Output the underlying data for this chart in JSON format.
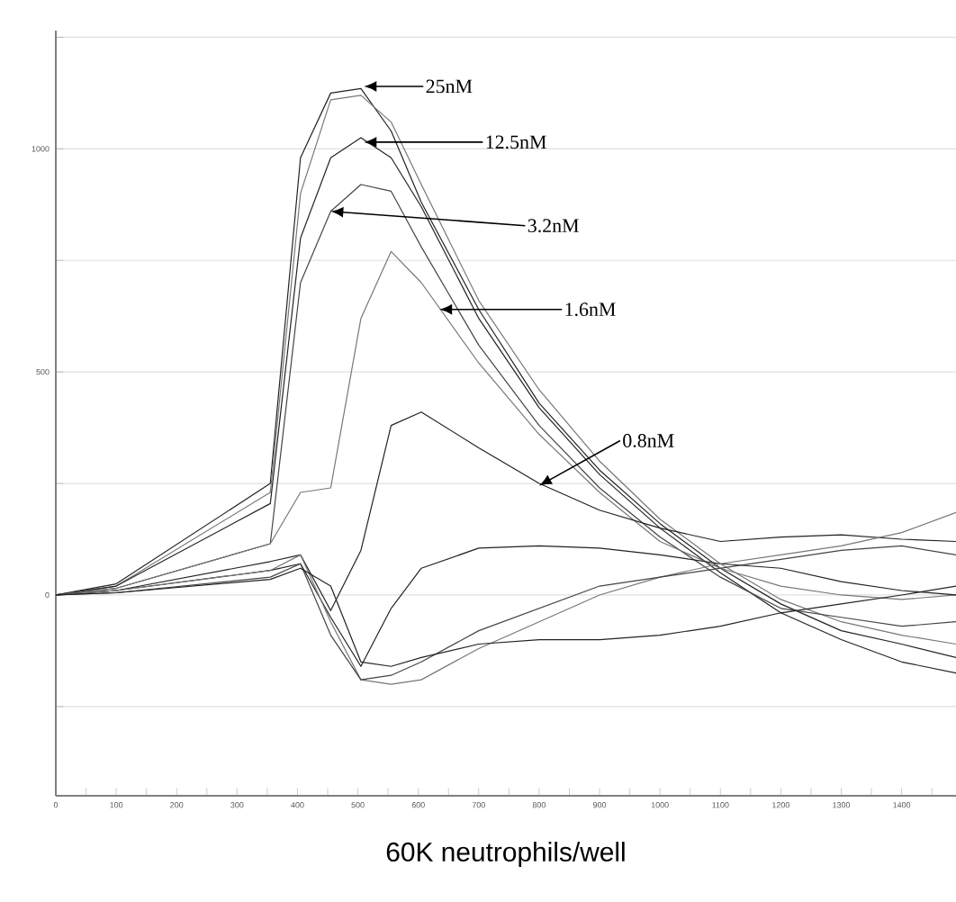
{
  "chart_data": {
    "type": "line",
    "xlabel": "60K neutrophils/well",
    "grid": "y",
    "xlim": [
      0,
      1490
    ],
    "ylim": [
      -450,
      1265
    ],
    "xticks": [
      0,
      {
        "value": 50,
        "label": null
      },
      100,
      {
        "value": 150,
        "label": null
      },
      200,
      {
        "value": 250,
        "label": null
      },
      300,
      {
        "value": 350,
        "label": null
      },
      400,
      {
        "value": 450,
        "label": null
      },
      500,
      {
        "value": 550,
        "label": null
      },
      600,
      {
        "value": 650,
        "label": null
      },
      700,
      {
        "value": 750,
        "label": null
      },
      800,
      {
        "value": 850,
        "label": null
      },
      900,
      {
        "value": 950,
        "label": null
      },
      1000,
      {
        "value": 1050,
        "label": null
      },
      1100,
      {
        "value": 1150,
        "label": null
      },
      1200,
      {
        "value": 1250,
        "label": null
      },
      1300,
      {
        "value": 1350,
        "label": null
      },
      1400,
      {
        "value": 1450,
        "label": null
      }
    ],
    "yticks": [
      {
        "value": -250,
        "label": null
      },
      0,
      {
        "value": 250,
        "label": null
      },
      500,
      {
        "value": 750,
        "label": null
      },
      1000,
      {
        "value": 1250,
        "label": null
      }
    ],
    "x": [
      0,
      100,
      355,
      405,
      455,
      505,
      555,
      605,
      700,
      800,
      900,
      1000,
      1100,
      1200,
      1300,
      1400,
      1490
    ],
    "series": [
      {
        "color": "#222222",
        "values": [
          0,
          25,
          250,
          980,
          1125,
          1135,
          1040,
          880,
          640,
          430,
          280,
          160,
          60,
          -20,
          -80,
          -110,
          -140
        ]
      },
      {
        "color": "#777777",
        "values": [
          0,
          20,
          230,
          900,
          1110,
          1120,
          1060,
          920,
          660,
          460,
          300,
          170,
          70,
          -10,
          -60,
          -90,
          -110
        ]
      },
      {
        "color": "#222222",
        "values": [
          0,
          20,
          205,
          800,
          980,
          1025,
          980,
          870,
          620,
          420,
          270,
          150,
          50,
          -40,
          -100,
          -150,
          -175
        ]
      },
      {
        "color": "#444444",
        "values": [
          0,
          15,
          115,
          700,
          860,
          920,
          905,
          780,
          560,
          380,
          240,
          130,
          40,
          -30,
          -50,
          -70,
          -60
        ]
      },
      {
        "color": "#777777",
        "values": [
          0,
          15,
          115,
          230,
          240,
          620,
          770,
          700,
          520,
          360,
          230,
          120,
          60,
          20,
          0,
          -10,
          0
        ]
      },
      {
        "color": "#222222",
        "values": [
          0,
          10,
          75,
          90,
          -35,
          100,
          380,
          410,
          330,
          250,
          190,
          150,
          120,
          130,
          135,
          125,
          120
        ]
      },
      {
        "color": "#222222",
        "values": [
          0,
          10,
          55,
          70,
          -50,
          -160,
          -30,
          60,
          105,
          110,
          105,
          90,
          70,
          60,
          30,
          10,
          0
        ]
      },
      {
        "color": "#777777",
        "values": [
          0,
          10,
          55,
          90,
          -60,
          -190,
          -200,
          -190,
          -120,
          -60,
          0,
          40,
          70,
          90,
          110,
          140,
          185
        ]
      },
      {
        "color": "#444444",
        "values": [
          0,
          5,
          40,
          70,
          -90,
          -190,
          -180,
          -150,
          -80,
          -30,
          20,
          40,
          60,
          80,
          100,
          110,
          90
        ]
      },
      {
        "color": "#222222",
        "values": [
          0,
          5,
          35,
          60,
          20,
          -150,
          -160,
          -140,
          -110,
          -100,
          -100,
          -90,
          -70,
          -40,
          -20,
          0,
          20
        ]
      }
    ],
    "annotations": [
      {
        "text": "25nM",
        "x": 510,
        "y": 1140
      },
      {
        "text": "12.5nM",
        "x": 510,
        "y": 1015
      },
      {
        "text": "3.2nM",
        "x": 455,
        "y": 860
      },
      {
        "text": "1.6nM",
        "x": 635,
        "y": 640
      },
      {
        "text": "0.8nM",
        "x": 800,
        "y": 245
      }
    ]
  }
}
